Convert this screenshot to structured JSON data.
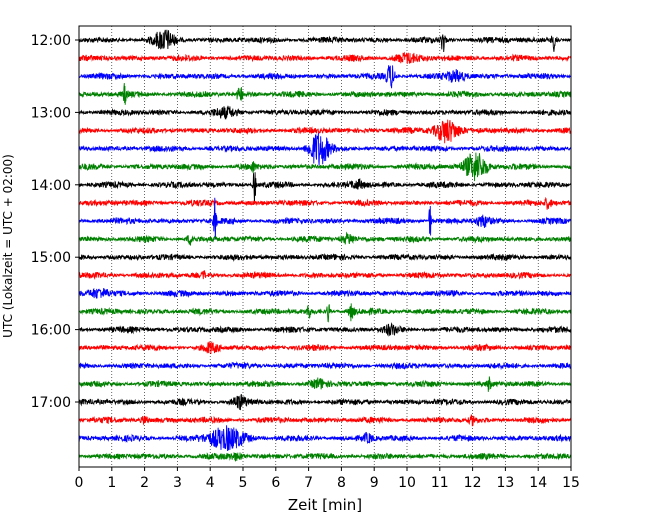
{
  "chart_data": {
    "type": "line",
    "title": "",
    "xlabel": "Zeit  [min]",
    "ylabel": "UTC (Lokalzeit = UTC + 02:00)",
    "xlim": [
      0,
      15
    ],
    "x_ticks": [
      "0",
      "1",
      "2",
      "3",
      "4",
      "5",
      "6",
      "7",
      "8",
      "9",
      "10",
      "11",
      "12",
      "13",
      "14",
      "15"
    ],
    "y_ticks": [
      {
        "label": "12:00",
        "row": 0
      },
      {
        "label": "13:00",
        "row": 4
      },
      {
        "label": "14:00",
        "row": 8
      },
      {
        "label": "15:00",
        "row": 12
      },
      {
        "label": "16:00",
        "row": 16
      },
      {
        "label": "17:00",
        "row": 20
      }
    ],
    "grid": "vertical dotted",
    "row_colors": [
      "#000000",
      "#ff0000",
      "#0000ff",
      "#008000"
    ],
    "rows": [
      {
        "start": "12:00",
        "color": "#000000",
        "events": [
          {
            "t": 2.6,
            "a": 9,
            "w": 0.3
          },
          {
            "t": 11.1,
            "a": 12,
            "w": 0.06
          },
          {
            "t": 14.5,
            "a": 11,
            "w": 0.08
          }
        ]
      },
      {
        "start": "12:15",
        "color": "#ff0000",
        "events": [
          {
            "t": 10.0,
            "a": 4,
            "w": 0.4
          }
        ]
      },
      {
        "start": "12:30",
        "color": "#0000ff",
        "events": [
          {
            "t": 9.5,
            "a": 12,
            "w": 0.12
          },
          {
            "t": 11.5,
            "a": 5,
            "w": 0.3
          }
        ]
      },
      {
        "start": "12:45",
        "color": "#008000",
        "events": [
          {
            "t": 1.4,
            "a": 10,
            "w": 0.05
          },
          {
            "t": 4.9,
            "a": 8,
            "w": 0.08
          }
        ]
      },
      {
        "start": "13:00",
        "color": "#000000",
        "events": [
          {
            "t": 4.5,
            "a": 4,
            "w": 0.3
          }
        ]
      },
      {
        "start": "13:15",
        "color": "#ff0000",
        "events": [
          {
            "t": 11.2,
            "a": 12,
            "w": 0.35
          }
        ]
      },
      {
        "start": "13:30",
        "color": "#0000ff",
        "events": [
          {
            "t": 7.3,
            "a": 16,
            "w": 0.3
          }
        ]
      },
      {
        "start": "13:45",
        "color": "#008000",
        "events": [
          {
            "t": 12.1,
            "a": 14,
            "w": 0.35
          },
          {
            "t": 5.3,
            "a": 5,
            "w": 0.05
          }
        ]
      },
      {
        "start": "14:00",
        "color": "#000000",
        "events": [
          {
            "t": 5.35,
            "a": 18,
            "w": 0.04
          },
          {
            "t": 8.5,
            "a": 4,
            "w": 0.2
          }
        ]
      },
      {
        "start": "14:15",
        "color": "#ff0000",
        "events": [
          {
            "t": 14.3,
            "a": 5,
            "w": 0.1
          }
        ]
      },
      {
        "start": "14:30",
        "color": "#0000ff",
        "events": [
          {
            "t": 4.15,
            "a": 22,
            "w": 0.04
          },
          {
            "t": 10.7,
            "a": 18,
            "w": 0.04
          },
          {
            "t": 12.3,
            "a": 5,
            "w": 0.2
          }
        ]
      },
      {
        "start": "14:45",
        "color": "#008000",
        "events": [
          {
            "t": 3.4,
            "a": 5,
            "w": 0.1
          },
          {
            "t": 8.2,
            "a": 5,
            "w": 0.2
          }
        ]
      },
      {
        "start": "15:00",
        "color": "#000000",
        "events": []
      },
      {
        "start": "15:15",
        "color": "#ff0000",
        "events": [
          {
            "t": 3.8,
            "a": 4,
            "w": 0.05
          }
        ]
      },
      {
        "start": "15:30",
        "color": "#0000ff",
        "events": [
          {
            "t": 0.6,
            "a": 4,
            "w": 0.3
          }
        ]
      },
      {
        "start": "15:45",
        "color": "#008000",
        "events": [
          {
            "t": 7.0,
            "a": 12,
            "w": 0.04
          },
          {
            "t": 7.6,
            "a": 12,
            "w": 0.04
          },
          {
            "t": 8.3,
            "a": 8,
            "w": 0.08
          }
        ]
      },
      {
        "start": "16:00",
        "color": "#000000",
        "events": [
          {
            "t": 9.5,
            "a": 4,
            "w": 0.2
          }
        ]
      },
      {
        "start": "16:15",
        "color": "#ff0000",
        "events": [
          {
            "t": 4.0,
            "a": 4,
            "w": 0.2
          }
        ]
      },
      {
        "start": "16:30",
        "color": "#0000ff",
        "events": []
      },
      {
        "start": "16:45",
        "color": "#008000",
        "events": [
          {
            "t": 12.5,
            "a": 6,
            "w": 0.06
          },
          {
            "t": 7.3,
            "a": 4,
            "w": 0.2
          }
        ]
      },
      {
        "start": "17:00",
        "color": "#000000",
        "events": [
          {
            "t": 4.9,
            "a": 6,
            "w": 0.2
          }
        ]
      },
      {
        "start": "17:15",
        "color": "#ff0000",
        "events": [
          {
            "t": 2.0,
            "a": 4,
            "w": 0.1
          },
          {
            "t": 12.0,
            "a": 4,
            "w": 0.1
          }
        ]
      },
      {
        "start": "17:30",
        "color": "#0000ff",
        "events": [
          {
            "t": 4.5,
            "a": 11,
            "w": 0.55
          },
          {
            "t": 8.8,
            "a": 4,
            "w": 0.15
          }
        ]
      },
      {
        "start": "17:45",
        "color": "#008000",
        "events": [
          {
            "t": 4.8,
            "a": 3,
            "w": 0.2
          }
        ]
      }
    ]
  }
}
